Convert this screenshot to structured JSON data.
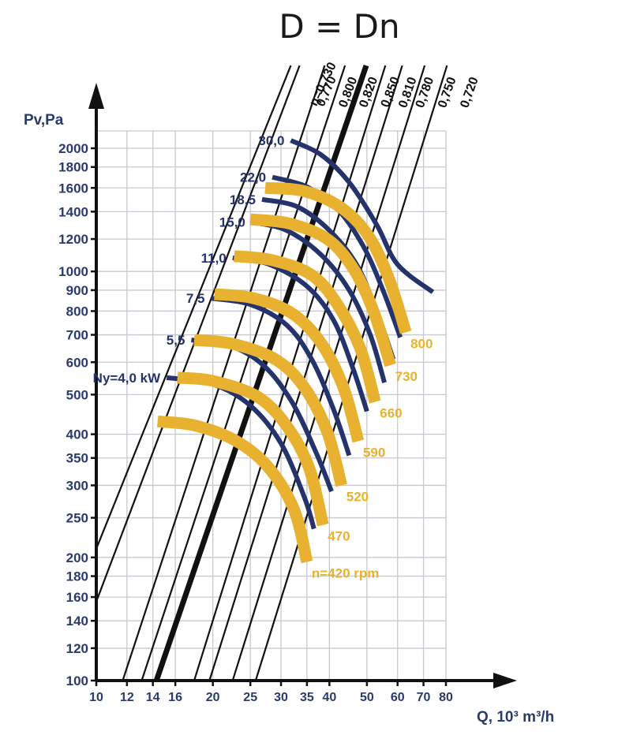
{
  "title": "D = Dn",
  "chart_data": {
    "type": "line",
    "title": "D = Dn",
    "xlabel": "Q, 10³ m³/h",
    "ylabel": "Pv,Pa",
    "xscale": "log",
    "yscale": "log",
    "xlim": [
      10,
      80
    ],
    "ylim": [
      100,
      2200
    ],
    "grid": true,
    "x_ticks": [
      10,
      12,
      14,
      16,
      20,
      25,
      30,
      35,
      40,
      50,
      60,
      70,
      80
    ],
    "y_ticks": [
      100,
      120,
      140,
      160,
      180,
      200,
      250,
      300,
      350,
      400,
      500,
      600,
      700,
      800,
      900,
      1000,
      1200,
      1400,
      1600,
      1800,
      2000
    ],
    "efficiency_lines": [
      {
        "label": "η=0,730",
        "points": [
          [
            10,
            210
          ],
          [
            31.8,
            2090
          ]
        ]
      },
      {
        "label": "0,770",
        "points": [
          [
            10,
            156
          ],
          [
            33.5,
            2090
          ]
        ]
      },
      {
        "label": "0,800",
        "points": [
          [
            11.7,
            100
          ],
          [
            38.9,
            2090
          ]
        ]
      },
      {
        "label": "0,820",
        "points": [
          [
            13.1,
            100
          ],
          [
            43.9,
            2090
          ]
        ]
      },
      {
        "label": "0,850",
        "points": [
          [
            14.3,
            100
          ],
          [
            49.8,
            2090
          ]
        ],
        "bold": true
      },
      {
        "label": "0,810",
        "points": [
          [
            17.9,
            100
          ],
          [
            55.8,
            2090
          ]
        ]
      },
      {
        "label": "0,780",
        "points": [
          [
            19.6,
            100
          ],
          [
            61.7,
            2090
          ]
        ]
      },
      {
        "label": "0,750",
        "points": [
          [
            22.5,
            100
          ],
          [
            70.5,
            2090
          ]
        ]
      },
      {
        "label": "0,720",
        "points": [
          [
            25.8,
            100
          ],
          [
            80.5,
            2090
          ]
        ]
      }
    ],
    "power_curves": [
      {
        "label": "Ny=4,0 kW",
        "points": [
          [
            15.2,
            550
          ],
          [
            20.0,
            530
          ],
          [
            25.0,
            470
          ],
          [
            30.0,
            380
          ],
          [
            34.5,
            280
          ],
          [
            36.5,
            235
          ]
        ]
      },
      {
        "label": "5,5",
        "points": [
          [
            17.6,
            680
          ],
          [
            22.0,
            660
          ],
          [
            27.0,
            590
          ],
          [
            32.0,
            480
          ],
          [
            37.0,
            360
          ],
          [
            40.5,
            290
          ]
        ]
      },
      {
        "label": "7,5",
        "points": [
          [
            19.8,
            860
          ],
          [
            25.0,
            830
          ],
          [
            31.0,
            740
          ],
          [
            36.0,
            610
          ],
          [
            41.0,
            460
          ],
          [
            45.0,
            355
          ]
        ]
      },
      {
        "label": "11,0",
        "points": [
          [
            22.5,
            1080
          ],
          [
            28.0,
            1040
          ],
          [
            35.0,
            920
          ],
          [
            41.0,
            760
          ],
          [
            46.0,
            580
          ],
          [
            50.0,
            455
          ]
        ]
      },
      {
        "label": "15,0",
        "points": [
          [
            25.2,
            1320
          ],
          [
            31.0,
            1260
          ],
          [
            38.0,
            1100
          ],
          [
            45.0,
            900
          ],
          [
            51.0,
            700
          ],
          [
            55.5,
            535
          ]
        ]
      },
      {
        "label": "18,5",
        "points": [
          [
            26.8,
            1500
          ],
          [
            33.0,
            1440
          ],
          [
            40.0,
            1260
          ],
          [
            47.0,
            1040
          ],
          [
            53.0,
            800
          ],
          [
            58.5,
            610
          ]
        ]
      },
      {
        "label": "22,0",
        "points": [
          [
            28.5,
            1700
          ],
          [
            35.0,
            1610
          ],
          [
            42.0,
            1420
          ],
          [
            49.0,
            1150
          ],
          [
            55.0,
            900
          ],
          [
            61.0,
            690
          ]
        ]
      },
      {
        "label": "30,0",
        "points": [
          [
            31.8,
            2090
          ],
          [
            38.0,
            1930
          ],
          [
            45.0,
            1650
          ],
          [
            53.0,
            1300
          ],
          [
            60.0,
            1040
          ],
          [
            74.0,
            890
          ]
        ]
      }
    ],
    "speed_curves": [
      {
        "label": "n=420 rpm",
        "points": [
          [
            14.4,
            430
          ],
          [
            18.0,
            420
          ],
          [
            23.0,
            385
          ],
          [
            28.0,
            330
          ],
          [
            32.5,
            260
          ],
          [
            35.0,
            195
          ]
        ]
      },
      {
        "label": "470",
        "points": [
          [
            16.2,
            550
          ],
          [
            20.0,
            540
          ],
          [
            26.0,
            495
          ],
          [
            31.0,
            420
          ],
          [
            35.5,
            330
          ],
          [
            38.5,
            240
          ]
        ]
      },
      {
        "label": "520",
        "points": [
          [
            17.9,
            680
          ],
          [
            22.5,
            665
          ],
          [
            29.0,
            610
          ],
          [
            34.5,
            520
          ],
          [
            39.5,
            405
          ],
          [
            43.0,
            300
          ]
        ]
      },
      {
        "label": "590",
        "points": [
          [
            20.2,
            880
          ],
          [
            25.5,
            860
          ],
          [
            32.0,
            790
          ],
          [
            38.0,
            670
          ],
          [
            43.5,
            520
          ],
          [
            47.5,
            385
          ]
        ]
      },
      {
        "label": "660",
        "points": [
          [
            22.7,
            1090
          ],
          [
            28.5,
            1065
          ],
          [
            36.0,
            980
          ],
          [
            42.0,
            830
          ],
          [
            48.0,
            650
          ],
          [
            52.5,
            480
          ]
        ]
      },
      {
        "label": "730",
        "points": [
          [
            25.0,
            1340
          ],
          [
            31.5,
            1310
          ],
          [
            39.5,
            1200
          ],
          [
            46.0,
            1020
          ],
          [
            52.0,
            800
          ],
          [
            57.5,
            590
          ]
        ]
      },
      {
        "label": "800",
        "points": [
          [
            27.3,
            1600
          ],
          [
            34.5,
            1570
          ],
          [
            43.0,
            1430
          ],
          [
            50.5,
            1220
          ],
          [
            57.0,
            960
          ],
          [
            63.0,
            710
          ]
        ]
      }
    ],
    "label_values": {
      "power": [
        "Ny=4,0 kW",
        "5,5",
        "7,5",
        "11,0",
        "15,0",
        "18,5",
        "22,0",
        "30,0"
      ],
      "speed": [
        "n=420 rpm",
        "470",
        "520",
        "590",
        "660",
        "730",
        "800"
      ]
    },
    "colors": {
      "efficiency": "#111111",
      "power": "#24336b",
      "speed": "#e8b230",
      "axis": "#111111",
      "grid": "#c8c8d0",
      "tick_text": "#2a3a6e"
    }
  }
}
